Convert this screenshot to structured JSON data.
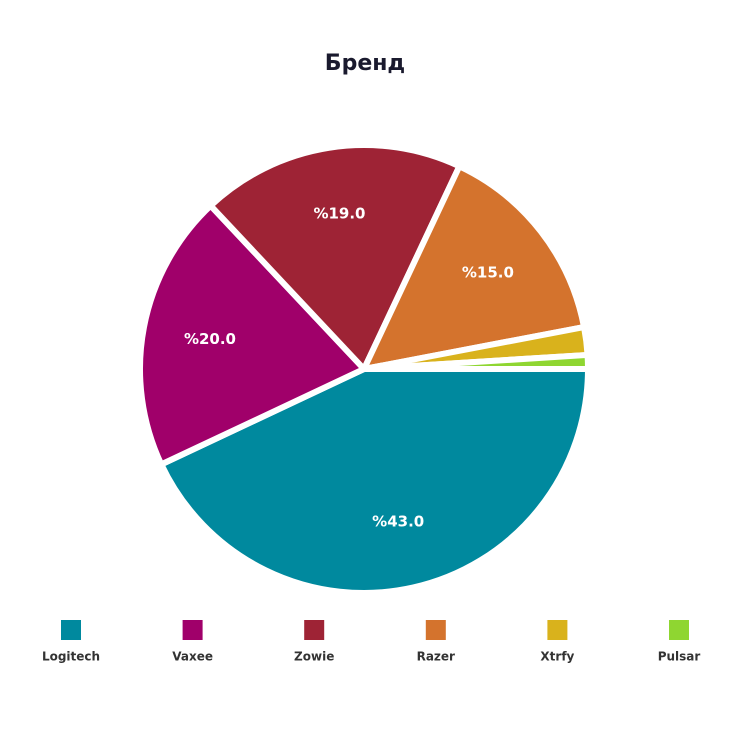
{
  "chart_data": {
    "type": "pie",
    "title": "Бренд",
    "categories": [
      "Logitech",
      "Vaxee",
      "Zowie",
      "Razer",
      "Xtrfy",
      "Pulsar"
    ],
    "values": [
      43,
      20,
      19,
      15,
      2,
      1
    ],
    "value_labels": [
      "%43.0",
      "%20.0",
      "%19.0",
      "%15.0",
      null,
      null
    ],
    "colors": [
      "#00899e",
      "#a0006a",
      "#9e2335",
      "#d4732d",
      "#d9b21c",
      "#8fd631"
    ],
    "legend": "bottom"
  }
}
